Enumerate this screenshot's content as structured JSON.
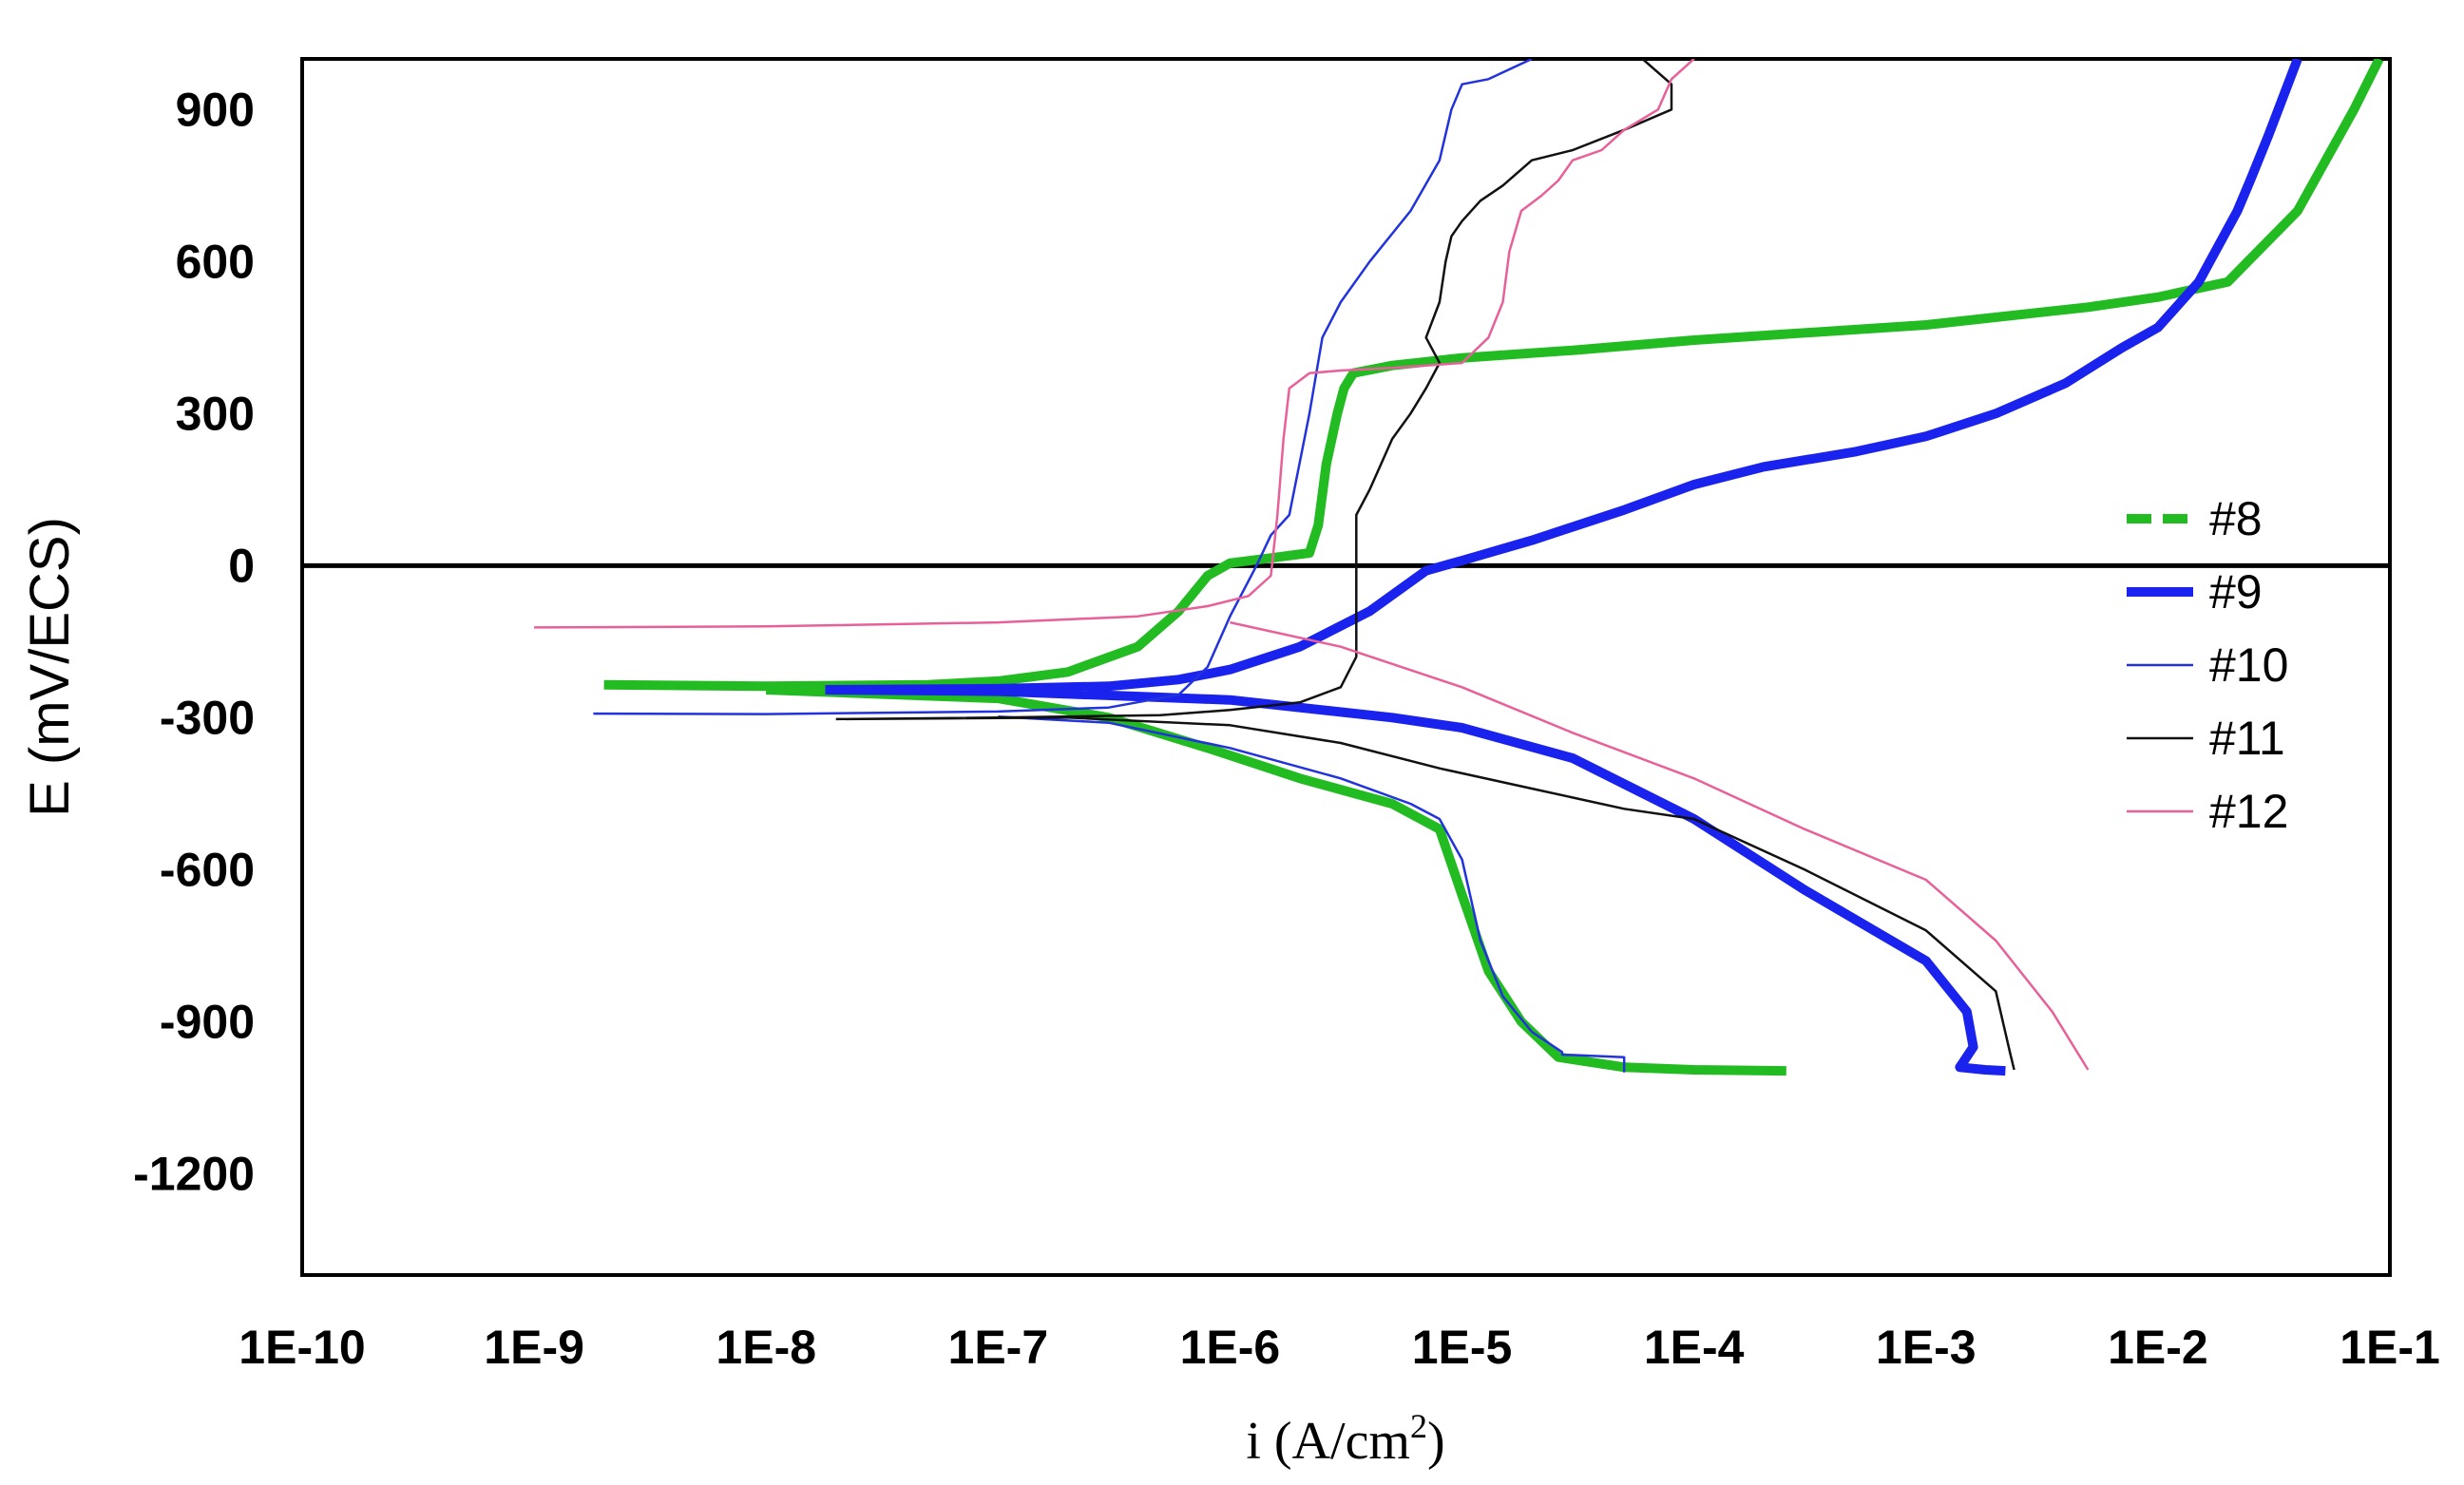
{
  "chart_data": {
    "type": "line",
    "xlabel_main": "i (A/cm",
    "xlabel_sup": "2",
    "xlabel_close": ")",
    "ylabel": "E (mV/ECS)",
    "x_scale": "log",
    "xlim": [
      1e-10,
      0.1
    ],
    "ylim": [
      -1400,
      1000
    ],
    "x_ticks": [
      "1E-10",
      "1E-9",
      "1E-8",
      "1E-7",
      "1E-6",
      "1E-5",
      "1E-4",
      "1E-3",
      "1E-2",
      "1E-1"
    ],
    "y_ticks": [
      "900",
      "600",
      "300",
      "0",
      "-300",
      "-600",
      "-900",
      "-1200"
    ],
    "y_tick_values": [
      900,
      600,
      300,
      0,
      -300,
      -600,
      -900,
      -1200
    ],
    "reference_line_y": 0,
    "grid": false,
    "legend_position": "right",
    "series": [
      {
        "name": "#8",
        "color": "#22bb22",
        "style": "dashed-thick",
        "points": [
          [
            2e-09,
            -235
          ],
          [
            1e-08,
            -238
          ],
          [
            5e-08,
            -235
          ],
          [
            1e-07,
            -228
          ],
          [
            2e-07,
            -210
          ],
          [
            4e-07,
            -160
          ],
          [
            6e-07,
            -90
          ],
          [
            8e-07,
            -20
          ],
          [
            1e-06,
            5
          ],
          [
            1.5e-06,
            15
          ],
          [
            2.2e-06,
            25
          ],
          [
            2.4e-06,
            80
          ],
          [
            2.6e-06,
            200
          ],
          [
            2.9e-06,
            300
          ],
          [
            3.1e-06,
            350
          ],
          [
            3.4e-06,
            380
          ],
          [
            5e-06,
            395
          ],
          [
            1e-05,
            410
          ],
          [
            3e-05,
            425
          ],
          [
            0.0001,
            445
          ],
          [
            0.001,
            475
          ],
          [
            0.005,
            510
          ],
          [
            0.01,
            530
          ],
          [
            0.02,
            560
          ],
          [
            0.04,
            700
          ],
          [
            0.07,
            900
          ],
          [
            0.09,
            1000
          ],
          null,
          [
            1e-08,
            -245
          ],
          [
            1e-07,
            -262
          ],
          [
            3e-07,
            -300
          ],
          [
            8e-07,
            -360
          ],
          [
            2e-06,
            -420
          ],
          [
            5e-06,
            -470
          ],
          [
            8e-06,
            -520
          ],
          [
            1e-05,
            -650
          ],
          [
            1.3e-05,
            -800
          ],
          [
            1.8e-05,
            -900
          ],
          [
            2.6e-05,
            -970
          ],
          [
            5e-05,
            -990
          ],
          [
            0.0001,
            -995
          ],
          [
            0.00025,
            -997
          ]
        ]
      },
      {
        "name": "#9",
        "color": "#1a22ee",
        "style": "solid-thick",
        "points": [
          [
            1.8e-08,
            -245
          ],
          [
            1e-07,
            -243
          ],
          [
            3e-07,
            -238
          ],
          [
            6e-07,
            -225
          ],
          [
            1e-06,
            -205
          ],
          [
            2e-06,
            -160
          ],
          [
            4e-06,
            -90
          ],
          [
            7e-06,
            -10
          ],
          [
            1e-05,
            10
          ],
          [
            2e-05,
            50
          ],
          [
            5e-05,
            110
          ],
          [
            0.0001,
            160
          ],
          [
            0.0002,
            195
          ],
          [
            0.0005,
            225
          ],
          [
            0.001,
            255
          ],
          [
            0.002,
            300
          ],
          [
            0.004,
            360
          ],
          [
            0.007,
            430
          ],
          [
            0.01,
            470
          ],
          [
            0.015,
            560
          ],
          [
            0.022,
            700
          ],
          [
            0.025,
            760
          ],
          [
            0.03,
            850
          ],
          [
            0.04,
            1000
          ],
          null,
          [
            1.8e-08,
            -245
          ],
          [
            1e-07,
            -248
          ],
          [
            1e-06,
            -265
          ],
          [
            5e-06,
            -300
          ],
          [
            1e-05,
            -320
          ],
          [
            3e-05,
            -380
          ],
          [
            0.0001,
            -500
          ],
          [
            0.0003,
            -640
          ],
          [
            0.001,
            -780
          ],
          [
            0.0015,
            -880
          ],
          [
            0.0016,
            -950
          ],
          [
            0.0014,
            -990
          ],
          [
            0.0018,
            -995
          ],
          [
            0.0022,
            -997
          ]
        ]
      },
      {
        "name": "#10",
        "color": "#2233dd",
        "style": "solid-thin",
        "points": [
          [
            1.8e-09,
            -292
          ],
          [
            1e-08,
            -293
          ],
          [
            1e-07,
            -288
          ],
          [
            3e-07,
            -280
          ],
          [
            6e-07,
            -255
          ],
          [
            8e-07,
            -200
          ],
          [
            1e-06,
            -100
          ],
          [
            1.3e-06,
            0
          ],
          [
            1.5e-06,
            60
          ],
          [
            1.8e-06,
            100
          ],
          [
            2.2e-06,
            300
          ],
          [
            2.5e-06,
            450
          ],
          [
            3e-06,
            520
          ],
          [
            4e-06,
            600
          ],
          [
            6e-06,
            700
          ],
          [
            8e-06,
            800
          ],
          [
            9e-06,
            900
          ],
          [
            1e-05,
            950
          ],
          [
            1.3e-05,
            960
          ],
          [
            2e-05,
            1000
          ],
          null,
          [
            1e-07,
            -298
          ],
          [
            3e-07,
            -310
          ],
          [
            1e-06,
            -360
          ],
          [
            3e-06,
            -420
          ],
          [
            6e-06,
            -470
          ],
          [
            8e-06,
            -500
          ],
          [
            1e-05,
            -580
          ],
          [
            1.2e-05,
            -740
          ],
          [
            1.5e-05,
            -850
          ],
          [
            2e-05,
            -920
          ],
          [
            2.7e-05,
            -960
          ],
          [
            2.7e-05,
            -965
          ],
          [
            5e-05,
            -970
          ],
          [
            5e-05,
            -1000
          ]
        ]
      },
      {
        "name": "#11",
        "color": "#111111",
        "style": "solid-thin",
        "points": [
          [
            2e-08,
            -303
          ],
          [
            1e-07,
            -300
          ],
          [
            5e-07,
            -295
          ],
          [
            1e-06,
            -285
          ],
          [
            2e-06,
            -270
          ],
          [
            3e-06,
            -240
          ],
          [
            3.5e-06,
            -180
          ],
          [
            3.5e-06,
            0
          ],
          [
            3.5e-06,
            100
          ],
          [
            4e-06,
            150
          ],
          [
            5e-06,
            250
          ],
          [
            6e-06,
            300
          ],
          [
            7e-06,
            350
          ],
          [
            8e-06,
            400
          ],
          [
            7e-06,
            450
          ],
          [
            8e-06,
            520
          ],
          [
            8.5e-06,
            600
          ],
          [
            9e-06,
            650
          ],
          [
            1e-05,
            680
          ],
          [
            1.2e-05,
            720
          ],
          [
            1.5e-05,
            750
          ],
          [
            2e-05,
            800
          ],
          [
            3e-05,
            820
          ],
          [
            5e-05,
            860
          ],
          [
            8e-05,
            900
          ],
          [
            8e-05,
            950
          ],
          [
            6e-05,
            1000
          ],
          null,
          [
            2e-08,
            -303
          ],
          [
            2e-07,
            -300
          ],
          [
            1e-06,
            -315
          ],
          [
            3e-06,
            -350
          ],
          [
            8e-06,
            -400
          ],
          [
            2e-05,
            -440
          ],
          [
            5e-05,
            -480
          ],
          [
            0.0001,
            -500
          ],
          [
            0.0003,
            -600
          ],
          [
            0.001,
            -720
          ],
          [
            0.002,
            -840
          ],
          [
            0.0023,
            -960
          ],
          [
            0.0024,
            -995
          ]
        ]
      },
      {
        "name": "#12",
        "color": "#e8609a",
        "style": "solid-thin",
        "points": [
          [
            1e-09,
            -122
          ],
          [
            1e-08,
            -120
          ],
          [
            1e-07,
            -112
          ],
          [
            4e-07,
            -100
          ],
          [
            8e-07,
            -80
          ],
          [
            1.2e-06,
            -60
          ],
          [
            1.5e-06,
            -20
          ],
          [
            1.6e-06,
            100
          ],
          [
            1.7e-06,
            250
          ],
          [
            1.8e-06,
            350
          ],
          [
            2.2e-06,
            380
          ],
          [
            3e-06,
            385
          ],
          [
            5e-06,
            390
          ],
          [
            1e-05,
            400
          ],
          [
            1.3e-05,
            450
          ],
          [
            1.5e-05,
            520
          ],
          [
            1.6e-05,
            620
          ],
          [
            1.8e-05,
            700
          ],
          [
            2.2e-05,
            730
          ],
          [
            2.6e-05,
            760
          ],
          [
            3e-05,
            800
          ],
          [
            4e-05,
            820
          ],
          [
            5e-05,
            860
          ],
          [
            7e-05,
            900
          ],
          [
            8e-05,
            960
          ],
          [
            0.0001,
            1000
          ],
          null,
          [
            1e-06,
            -112
          ],
          [
            3e-06,
            -160
          ],
          [
            1e-05,
            -240
          ],
          [
            3e-05,
            -330
          ],
          [
            0.0001,
            -420
          ],
          [
            0.0003,
            -520
          ],
          [
            0.001,
            -620
          ],
          [
            0.002,
            -740
          ],
          [
            0.0035,
            -880
          ],
          [
            0.005,
            -995
          ]
        ]
      }
    ]
  }
}
